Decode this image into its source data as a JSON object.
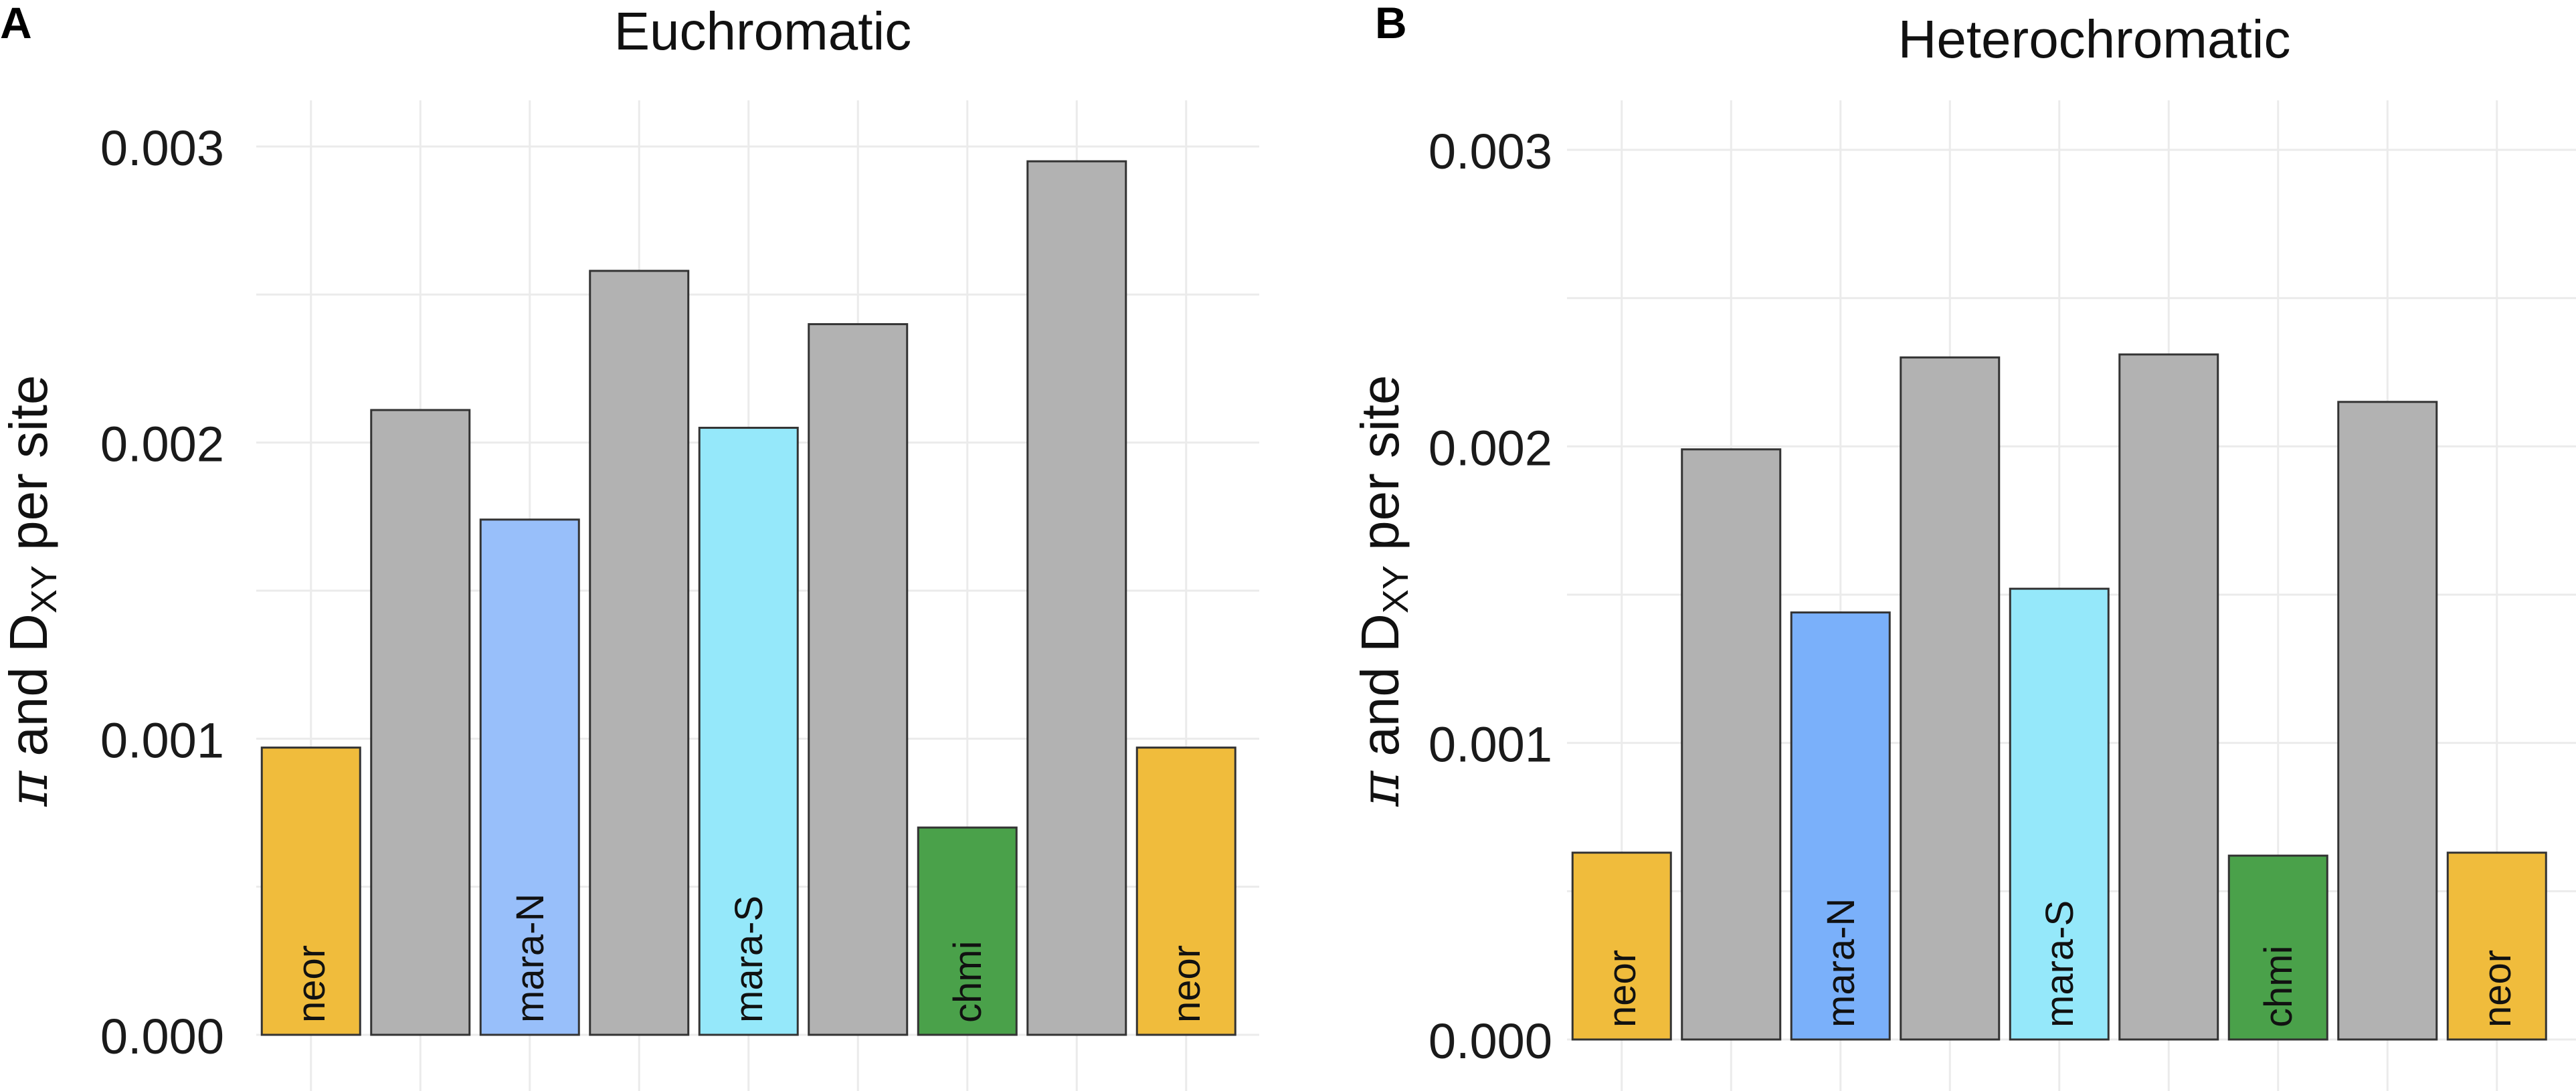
{
  "chart_data": [
    {
      "panel_label": "A",
      "type": "bar",
      "title": "Euchromatic",
      "ylabel_parts": {
        "pi": "π",
        "mid": " and D",
        "sub": "XY",
        "tail": " per site"
      },
      "ylim": [
        0,
        0.003
      ],
      "yticks": [
        "0.000",
        "0.001",
        "0.002",
        "0.003"
      ],
      "grid": true,
      "bars": [
        {
          "label": "neor",
          "value": 0.00097,
          "color": "#F0BC3C"
        },
        {
          "label": "",
          "value": 0.00211,
          "color": "#B2B2B2"
        },
        {
          "label": "mara-N",
          "value": 0.00174,
          "color": "#98BFFA"
        },
        {
          "label": "",
          "value": 0.00258,
          "color": "#B2B2B2"
        },
        {
          "label": "mara-S",
          "value": 0.00205,
          "color": "#95E8FA"
        },
        {
          "label": "",
          "value": 0.0024,
          "color": "#B2B2B2"
        },
        {
          "label": "chmi",
          "value": 0.0007,
          "color": "#4AA14A"
        },
        {
          "label": "",
          "value": 0.00295,
          "color": "#B2B2B2"
        },
        {
          "label": "neor",
          "value": 0.00097,
          "color": "#F0BC3C"
        }
      ]
    },
    {
      "panel_label": "B",
      "type": "bar",
      "title": "Heterochromatic",
      "ylabel_parts": {
        "pi": "π",
        "mid": " and D",
        "sub": "XY",
        "tail": " per site"
      },
      "ylim": [
        0,
        0.003
      ],
      "yticks": [
        "0.000",
        "0.001",
        "0.002",
        "0.003"
      ],
      "grid": true,
      "bars": [
        {
          "label": "neor",
          "value": 0.00063,
          "color": "#F0BC3C"
        },
        {
          "label": "",
          "value": 0.00199,
          "color": "#B2B2B2"
        },
        {
          "label": "mara-N",
          "value": 0.00144,
          "color": "#7AB0FA"
        },
        {
          "label": "",
          "value": 0.0023,
          "color": "#B2B2B2"
        },
        {
          "label": "mara-S",
          "value": 0.00152,
          "color": "#95E8FA"
        },
        {
          "label": "",
          "value": 0.00231,
          "color": "#B2B2B2"
        },
        {
          "label": "chmi",
          "value": 0.00062,
          "color": "#4AA14A"
        },
        {
          "label": "",
          "value": 0.00215,
          "color": "#B2B2B2"
        },
        {
          "label": "neor",
          "value": 0.00063,
          "color": "#F0BC3C"
        }
      ]
    }
  ]
}
